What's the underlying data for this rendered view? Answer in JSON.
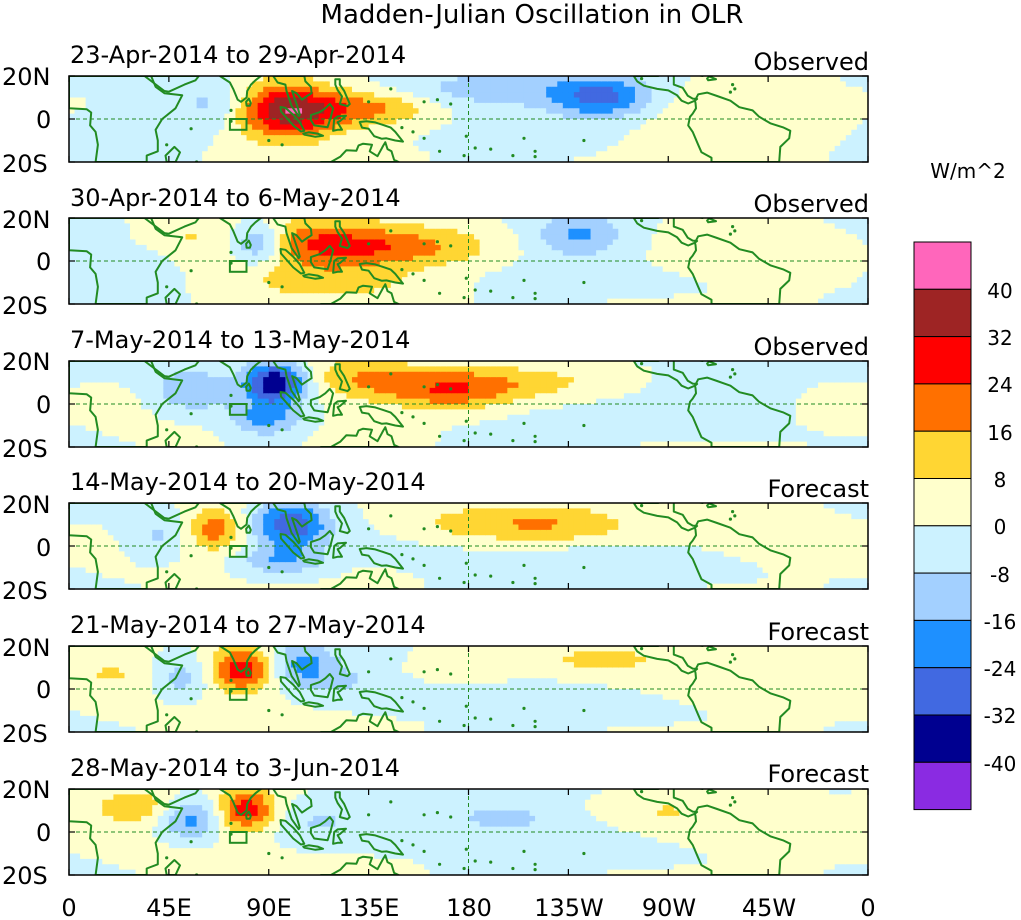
{
  "title": "Madden-Julian Oscillation in OLR",
  "colorbar": {
    "units": "W/m^2",
    "levels": [
      "40",
      "32",
      "24",
      "16",
      "8",
      "0",
      "-8",
      "-16",
      "-24",
      "-32",
      "-40"
    ],
    "colors": [
      "#ff66bb",
      "#9e2424",
      "#ff0000",
      "#ff7000",
      "#ffd633",
      "#ffffcc",
      "#ccf2ff",
      "#a3d0ff",
      "#1e90ff",
      "#4169e1",
      "#000090",
      "#8a2be2"
    ]
  },
  "axes": {
    "x_ticks": [
      "0",
      "45E",
      "90E",
      "135E",
      "180",
      "135W",
      "90W",
      "45W",
      "0"
    ],
    "y_ticks": [
      "20N",
      "0",
      "20S"
    ]
  },
  "panels": [
    {
      "date_range": "23-Apr-2014 to 29-Apr-2014",
      "label": "Observed"
    },
    {
      "date_range": "30-Apr-2014 to 6-May-2014",
      "label": "Observed"
    },
    {
      "date_range": "7-May-2014 to 13-May-2014",
      "label": "Observed"
    },
    {
      "date_range": "14-May-2014 to 20-May-2014",
      "label": "Forecast"
    },
    {
      "date_range": "21-May-2014 to 27-May-2014",
      "label": "Forecast"
    },
    {
      "date_range": "28-May-2014 to 3-Jun-2014",
      "label": "Forecast"
    }
  ],
  "anomaly_fields": [
    [
      {
        "lon": 98,
        "lat": 4,
        "amp": 36,
        "slon": 16,
        "slat": 9
      },
      {
        "lon": 135,
        "lat": 5,
        "amp": 20,
        "slon": 22,
        "slat": 6
      },
      {
        "lon": 65,
        "lat": 6,
        "amp": -12,
        "slon": 12,
        "slat": 9
      },
      {
        "lon": 240,
        "lat": 10,
        "amp": -26,
        "slon": 16,
        "slat": 7
      },
      {
        "lon": 190,
        "lat": 14,
        "amp": -12,
        "slon": 35,
        "slat": 6
      },
      {
        "lon": 20,
        "lat": -8,
        "amp": -7,
        "slon": 25,
        "slat": 8
      },
      {
        "lon": 300,
        "lat": -4,
        "amp": 6,
        "slon": 35,
        "slat": 10
      }
    ],
    [
      {
        "lon": 110,
        "lat": 8,
        "amp": 22,
        "slon": 26,
        "slat": 8
      },
      {
        "lon": 155,
        "lat": 6,
        "amp": 18,
        "slon": 28,
        "slat": 7
      },
      {
        "lon": 85,
        "lat": 8,
        "amp": -26,
        "slon": 9,
        "slat": 7
      },
      {
        "lon": 230,
        "lat": 12,
        "amp": -18,
        "slon": 15,
        "slat": 7
      },
      {
        "lon": 50,
        "lat": 12,
        "amp": 7,
        "slon": 12,
        "slat": 6
      },
      {
        "lon": 120,
        "lat": -10,
        "amp": 10,
        "slon": 28,
        "slat": 6
      },
      {
        "lon": 30,
        "lat": -6,
        "amp": -7,
        "slon": 18,
        "slat": 10
      }
    ],
    [
      {
        "lon": 93,
        "lat": 10,
        "amp": -40,
        "slon": 10,
        "slat": 7
      },
      {
        "lon": 88,
        "lat": -7,
        "amp": -20,
        "slon": 12,
        "slat": 6
      },
      {
        "lon": 55,
        "lat": 6,
        "amp": -16,
        "slon": 12,
        "slat": 8
      },
      {
        "lon": 170,
        "lat": 6,
        "amp": 22,
        "slon": 22,
        "slat": 7
      },
      {
        "lon": 130,
        "lat": 12,
        "amp": 14,
        "slon": 18,
        "slat": 7
      },
      {
        "lon": 205,
        "lat": 10,
        "amp": 10,
        "slon": 30,
        "slat": 6
      },
      {
        "lon": 290,
        "lat": 4,
        "amp": -6,
        "slon": 30,
        "slat": 10
      }
    ],
    [
      {
        "lon": 100,
        "lat": 10,
        "amp": -30,
        "slon": 12,
        "slat": 8
      },
      {
        "lon": 66,
        "lat": 8,
        "amp": 20,
        "slon": 9,
        "slat": 7
      },
      {
        "lon": 95,
        "lat": -7,
        "amp": -16,
        "slon": 15,
        "slat": 5
      },
      {
        "lon": 215,
        "lat": 10,
        "amp": 16,
        "slon": 25,
        "slat": 7
      },
      {
        "lon": 175,
        "lat": 10,
        "amp": 8,
        "slon": 20,
        "slat": 6
      },
      {
        "lon": 40,
        "lat": 4,
        "amp": -10,
        "slon": 10,
        "slat": 8
      },
      {
        "lon": 250,
        "lat": -8,
        "amp": -6,
        "slon": 30,
        "slat": 6
      }
    ],
    [
      {
        "lon": 78,
        "lat": 9,
        "amp": 30,
        "slon": 10,
        "slat": 7
      },
      {
        "lon": 105,
        "lat": 12,
        "amp": -18,
        "slon": 10,
        "slat": 8
      },
      {
        "lon": 50,
        "lat": 5,
        "amp": -14,
        "slon": 10,
        "slat": 7
      },
      {
        "lon": 130,
        "lat": 5,
        "amp": -8,
        "slon": 18,
        "slat": 8
      },
      {
        "lon": 240,
        "lat": 14,
        "amp": 10,
        "slon": 22,
        "slat": 5
      },
      {
        "lon": 20,
        "lat": 8,
        "amp": 8,
        "slon": 18,
        "slat": 7
      },
      {
        "lon": 165,
        "lat": 8,
        "amp": 6,
        "slon": 25,
        "slat": 5
      }
    ],
    [
      {
        "lon": 80,
        "lat": 10,
        "amp": 30,
        "slon": 10,
        "slat": 7
      },
      {
        "lon": 55,
        "lat": 6,
        "amp": -22,
        "slon": 10,
        "slat": 7
      },
      {
        "lon": 30,
        "lat": 12,
        "amp": 14,
        "slon": 15,
        "slat": 6
      },
      {
        "lon": 110,
        "lat": 4,
        "amp": -8,
        "slon": 20,
        "slat": 8
      },
      {
        "lon": 200,
        "lat": 8,
        "amp": -8,
        "slon": 28,
        "slat": 7
      },
      {
        "lon": 265,
        "lat": 10,
        "amp": 7,
        "slon": 25,
        "slat": 5
      }
    ]
  ]
}
